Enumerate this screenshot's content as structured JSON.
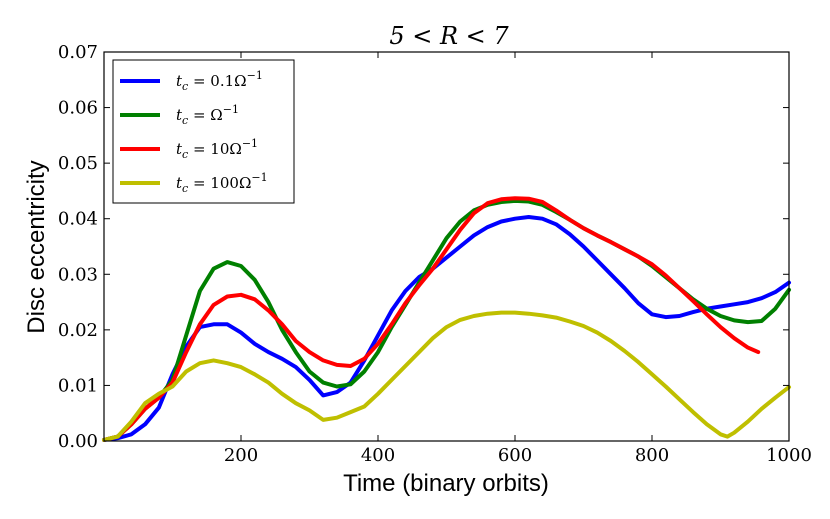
{
  "chart_data": {
    "type": "line",
    "title": "5 < R < 7",
    "xlabel": "Time (binary orbits)",
    "ylabel": "Disc eccentricity",
    "xlim": [
      0,
      1000
    ],
    "ylim": [
      0.0,
      0.07
    ],
    "xticks": [
      200,
      400,
      600,
      800,
      1000
    ],
    "xtick_labels": [
      "200",
      "400",
      "600",
      "800",
      "1000"
    ],
    "yticks": [
      0.0,
      0.01,
      0.02,
      0.03,
      0.04,
      0.05,
      0.06,
      0.07
    ],
    "ytick_labels": [
      "0.00",
      "0.01",
      "0.02",
      "0.03",
      "0.04",
      "0.05",
      "0.06",
      "0.07"
    ],
    "grid": false,
    "legend_position": "top-left",
    "series": [
      {
        "name": "t_c = 0.1Ω⁻¹",
        "color": "#0000ff",
        "x": [
          0,
          20,
          40,
          60,
          80,
          100,
          120,
          140,
          160,
          180,
          200,
          220,
          240,
          260,
          280,
          300,
          320,
          340,
          360,
          380,
          400,
          420,
          440,
          460,
          480,
          500,
          520,
          540,
          560,
          580,
          600,
          620,
          640,
          660,
          680,
          700,
          720,
          740,
          760,
          780,
          800,
          820,
          840,
          860,
          880,
          900,
          920,
          940,
          960,
          980,
          1000
        ],
        "y": [
          0.0002,
          0.0005,
          0.0012,
          0.003,
          0.006,
          0.012,
          0.017,
          0.0205,
          0.021,
          0.021,
          0.0195,
          0.0175,
          0.016,
          0.0148,
          0.0133,
          0.011,
          0.0082,
          0.0088,
          0.0105,
          0.0145,
          0.019,
          0.0235,
          0.027,
          0.0295,
          0.031,
          0.033,
          0.035,
          0.037,
          0.0385,
          0.0395,
          0.04,
          0.0403,
          0.04,
          0.039,
          0.0372,
          0.035,
          0.0325,
          0.03,
          0.0275,
          0.0248,
          0.0228,
          0.0223,
          0.0225,
          0.0232,
          0.0238,
          0.0242,
          0.0246,
          0.025,
          0.0257,
          0.0268,
          0.0285
        ]
      },
      {
        "name": "t_c = Ω⁻¹",
        "color": "#008000",
        "x": [
          0,
          20,
          40,
          60,
          80,
          100,
          120,
          140,
          160,
          180,
          200,
          220,
          240,
          260,
          280,
          300,
          320,
          340,
          360,
          380,
          400,
          420,
          440,
          460,
          480,
          500,
          520,
          540,
          560,
          580,
          600,
          620,
          640,
          660,
          680,
          700,
          720,
          740,
          760,
          780,
          800,
          820,
          840,
          860,
          880,
          900,
          920,
          940,
          960,
          980,
          1000
        ],
        "y": [
          0.0002,
          0.0008,
          0.003,
          0.0058,
          0.0078,
          0.011,
          0.019,
          0.027,
          0.031,
          0.0322,
          0.0315,
          0.029,
          0.025,
          0.02,
          0.016,
          0.0125,
          0.0105,
          0.0098,
          0.0102,
          0.0125,
          0.016,
          0.0205,
          0.0245,
          0.0285,
          0.0325,
          0.0365,
          0.0395,
          0.0415,
          0.0425,
          0.043,
          0.0432,
          0.0431,
          0.0425,
          0.0412,
          0.0398,
          0.0383,
          0.037,
          0.0358,
          0.0345,
          0.0332,
          0.0315,
          0.0295,
          0.0275,
          0.0255,
          0.0238,
          0.0225,
          0.0217,
          0.0214,
          0.0216,
          0.0238,
          0.0272
        ]
      },
      {
        "name": "t_c = 10Ω⁻¹",
        "color": "#ff0000",
        "x": [
          0,
          20,
          40,
          60,
          80,
          100,
          120,
          140,
          160,
          180,
          200,
          220,
          240,
          260,
          280,
          300,
          320,
          340,
          360,
          380,
          400,
          420,
          440,
          460,
          480,
          500,
          520,
          540,
          560,
          580,
          600,
          620,
          640,
          660,
          680,
          700,
          720,
          740,
          760,
          780,
          800,
          820,
          840,
          860,
          880,
          900,
          920,
          940,
          955
        ],
        "y": [
          0.0002,
          0.0008,
          0.003,
          0.0058,
          0.0078,
          0.0105,
          0.016,
          0.021,
          0.0245,
          0.026,
          0.0263,
          0.0255,
          0.0235,
          0.021,
          0.018,
          0.016,
          0.0145,
          0.0137,
          0.0135,
          0.0148,
          0.0175,
          0.021,
          0.0248,
          0.028,
          0.031,
          0.0345,
          0.038,
          0.041,
          0.0428,
          0.0435,
          0.0437,
          0.0436,
          0.043,
          0.0415,
          0.0398,
          0.0383,
          0.037,
          0.0358,
          0.0345,
          0.0332,
          0.0318,
          0.0298,
          0.0275,
          0.0252,
          0.0228,
          0.0205,
          0.0185,
          0.0168,
          0.016
        ]
      },
      {
        "name": "t_c = 100Ω⁻¹",
        "color": "#bfbf00",
        "x": [
          0,
          20,
          40,
          60,
          80,
          100,
          120,
          140,
          160,
          180,
          200,
          220,
          240,
          260,
          280,
          300,
          320,
          340,
          360,
          380,
          400,
          420,
          440,
          460,
          480,
          500,
          520,
          540,
          560,
          580,
          600,
          620,
          640,
          660,
          680,
          700,
          720,
          740,
          760,
          780,
          800,
          820,
          840,
          860,
          880,
          900,
          910,
          920,
          940,
          960,
          980,
          1000
        ],
        "y": [
          0.0002,
          0.0008,
          0.0035,
          0.0068,
          0.0085,
          0.0098,
          0.0125,
          0.014,
          0.0145,
          0.014,
          0.0133,
          0.012,
          0.0105,
          0.0085,
          0.0068,
          0.0055,
          0.0038,
          0.0042,
          0.0052,
          0.0062,
          0.0085,
          0.011,
          0.0135,
          0.016,
          0.0185,
          0.0205,
          0.0218,
          0.0225,
          0.0229,
          0.0231,
          0.0231,
          0.0229,
          0.0226,
          0.0222,
          0.0215,
          0.0207,
          0.0195,
          0.018,
          0.0162,
          0.0142,
          0.012,
          0.0098,
          0.0075,
          0.0052,
          0.003,
          0.0012,
          0.0008,
          0.0015,
          0.0035,
          0.0058,
          0.0078,
          0.0097
        ]
      }
    ]
  },
  "legend": {
    "entries": [
      {
        "prefix": "t",
        "sub": "c",
        "mid": " = 0.1Ω",
        "sup": "−1"
      },
      {
        "prefix": "t",
        "sub": "c",
        "mid": " = Ω",
        "sup": "−1"
      },
      {
        "prefix": "t",
        "sub": "c",
        "mid": " = 10Ω",
        "sup": "−1"
      },
      {
        "prefix": "t",
        "sub": "c",
        "mid": " = 100Ω",
        "sup": "−1"
      }
    ]
  }
}
